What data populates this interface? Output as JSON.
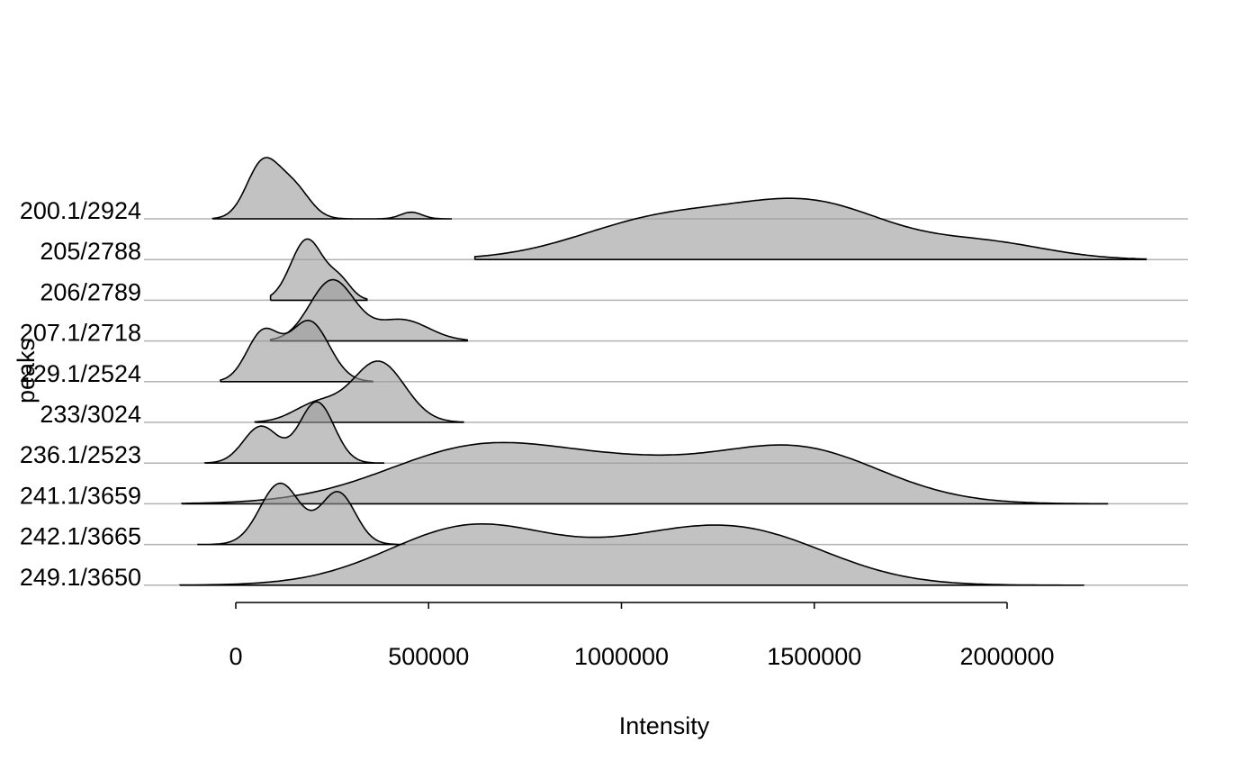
{
  "chart_data": {
    "type": "ridgeline",
    "xlabel": "Intensity",
    "ylabel": "peaks",
    "x_ticks": [
      0,
      500000,
      1000000,
      1500000,
      2000000
    ],
    "x_tick_labels": [
      "0",
      "500000",
      "1000000",
      "1500000",
      "2000000"
    ],
    "xlim": [
      -150000,
      2400000
    ],
    "categories": [
      "200.1/2924",
      "205/2788",
      "206/2789",
      "207.1/2718",
      "229.1/2524",
      "233/3024",
      "236.1/2523",
      "241.1/3659",
      "242.1/3665",
      "249.1/3650"
    ],
    "ridges": [
      {
        "category": "200.1/2924",
        "range": [
          -60000,
          560000
        ],
        "components": [
          [
            70000,
            42000,
            1.0
          ],
          [
            150000,
            42000,
            0.55
          ],
          [
            455000,
            28000,
            0.12
          ]
        ]
      },
      {
        "category": "205/2788",
        "range": [
          620000,
          2360000
        ],
        "components": [
          [
            1100000,
            210000,
            0.55
          ],
          [
            1500000,
            200000,
            0.75
          ],
          [
            1950000,
            160000,
            0.22
          ]
        ]
      },
      {
        "category": "206/2789",
        "range": [
          90000,
          340000
        ],
        "components": [
          [
            185000,
            42000,
            1.0
          ],
          [
            270000,
            30000,
            0.3
          ]
        ]
      },
      {
        "category": "207.1/2718",
        "range": [
          90000,
          600000
        ],
        "components": [
          [
            250000,
            58000,
            1.0
          ],
          [
            430000,
            70000,
            0.35
          ]
        ]
      },
      {
        "category": "229.1/2524",
        "range": [
          -40000,
          355000
        ],
        "components": [
          [
            70000,
            42000,
            0.8
          ],
          [
            190000,
            52000,
            1.0
          ]
        ]
      },
      {
        "category": "233/3024",
        "range": [
          50000,
          590000
        ],
        "components": [
          [
            210000,
            60000,
            0.3
          ],
          [
            370000,
            68000,
            1.0
          ]
        ]
      },
      {
        "category": "236.1/2523",
        "range": [
          -80000,
          385000
        ],
        "components": [
          [
            65000,
            45000,
            0.6
          ],
          [
            210000,
            45000,
            1.0
          ]
        ]
      },
      {
        "category": "241.1/3659",
        "range": [
          -140000,
          2260000
        ],
        "components": [
          [
            650000,
            250000,
            0.65
          ],
          [
            1050000,
            190000,
            0.25
          ],
          [
            1450000,
            220000,
            0.62
          ]
        ]
      },
      {
        "category": "242.1/3665",
        "range": [
          -100000,
          440000
        ],
        "components": [
          [
            115000,
            52000,
            1.0
          ],
          [
            265000,
            45000,
            0.85
          ]
        ]
      },
      {
        "category": "249.1/3650",
        "range": [
          -145000,
          2200000
        ],
        "components": [
          [
            620000,
            220000,
            0.95
          ],
          [
            1050000,
            180000,
            0.3
          ],
          [
            1320000,
            220000,
            0.82
          ]
        ]
      }
    ],
    "ridge_fill": "#999999",
    "overlap_fill": "#666666",
    "line_color": "#000000",
    "baseline_color": "#b3b3b3",
    "grid": false
  }
}
